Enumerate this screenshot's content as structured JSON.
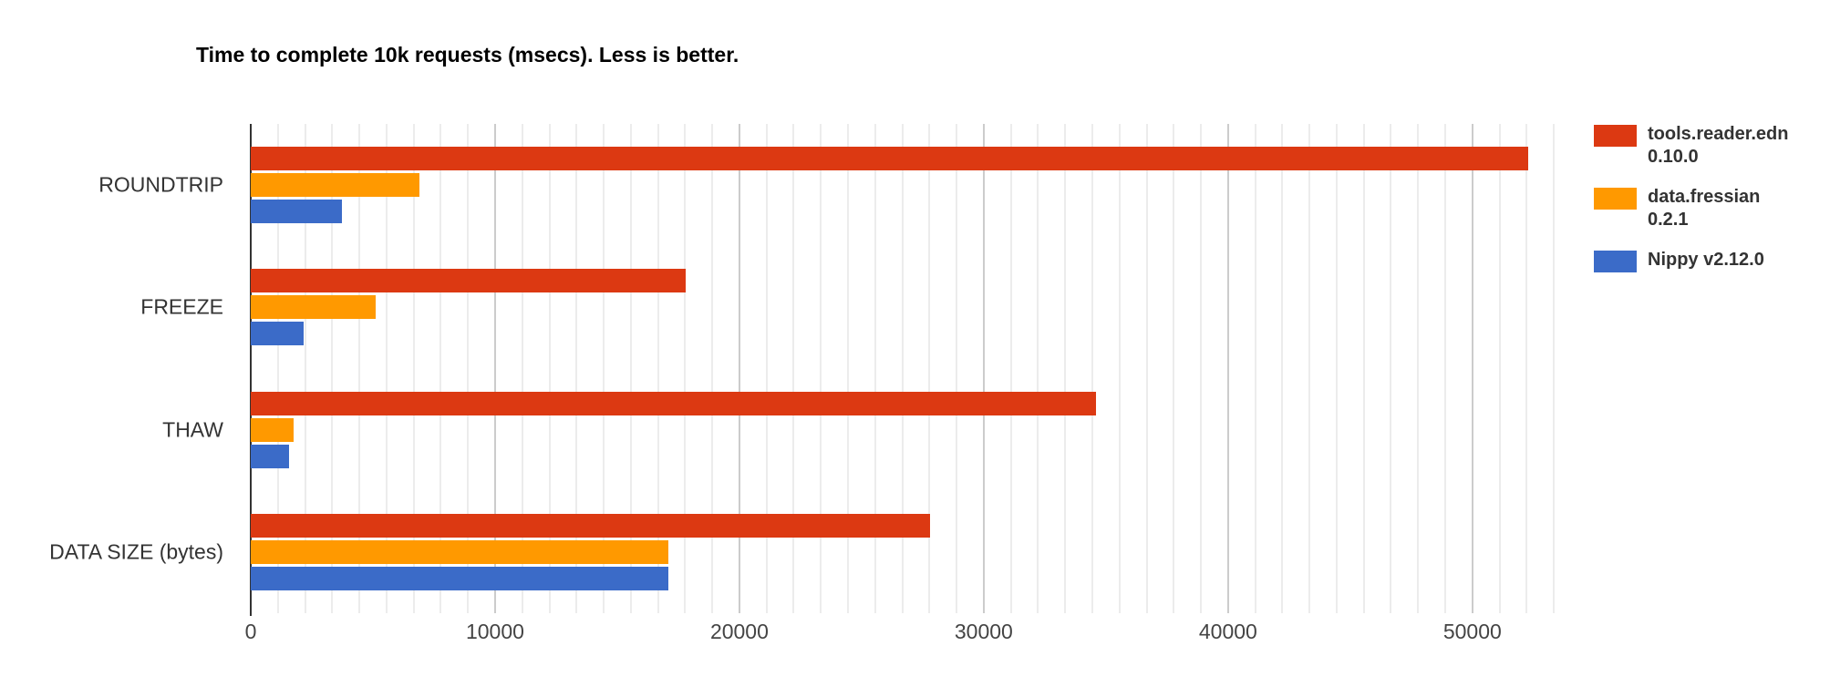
{
  "chart_data": {
    "type": "bar",
    "orientation": "horizontal",
    "title": "Time to complete 10k requests (msecs). Less is better.",
    "categories": [
      "ROUNDTRIP",
      "FREEZE",
      "THAW",
      "DATA SIZE (bytes)"
    ],
    "series": [
      {
        "name": "tools.reader.edn 0.10.0",
        "legend_lines": [
          "tools.reader.edn",
          "0.10.0"
        ],
        "color": "#DC3912",
        "values": [
          52300,
          17800,
          34600,
          27800
        ]
      },
      {
        "name": "data.fressian 0.2.1",
        "legend_lines": [
          "data.fressian",
          "0.2.1"
        ],
        "color": "#FF9900",
        "values": [
          6900,
          5100,
          1750,
          17100
        ]
      },
      {
        "name": "Nippy v2.12.0",
        "legend_lines": [
          "Nippy v2.12.0"
        ],
        "color": "#3B6BC8",
        "values": [
          3750,
          2160,
          1570,
          17100
        ]
      }
    ],
    "xaxis": {
      "min": 0,
      "max": 54000,
      "tick_interval": 10000,
      "tick_labels": [
        "0",
        "10000",
        "20000",
        "30000",
        "40000",
        "50000"
      ],
      "minor_per_major": 9,
      "minor_extent": 53400
    },
    "legend_position": "right",
    "grid": "on",
    "colors": {
      "background": "#ffffff",
      "axis_line": "#333333",
      "major_gridline": "#cccccc",
      "minor_gridline": "#ececec",
      "tick_label": "#444444",
      "category_label": "#333333",
      "title": "#000000"
    }
  }
}
